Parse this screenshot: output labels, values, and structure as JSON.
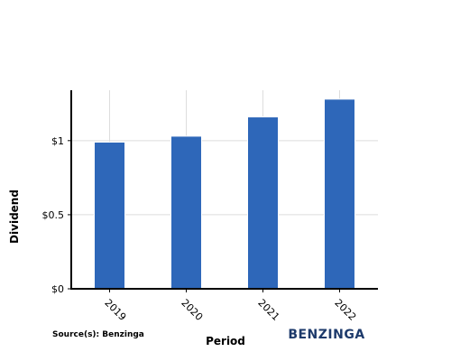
{
  "chart_data": {
    "type": "bar",
    "categories": [
      "2019",
      "2020",
      "2021",
      "2022"
    ],
    "values": [
      0.99,
      1.03,
      1.16,
      1.28
    ],
    "xlabel": "Period",
    "ylabel": "Dividend",
    "ylim": [
      0,
      1.34
    ],
    "yticks": [
      0,
      0.5,
      1
    ],
    "ytick_labels": [
      "$0",
      "$0.5",
      "$1"
    ],
    "grid": true,
    "bar_color": "#2e67b9"
  },
  "source": "Source(s): Benzinga",
  "brand": "BENZINGA",
  "brand_color": "#1d3a6b"
}
